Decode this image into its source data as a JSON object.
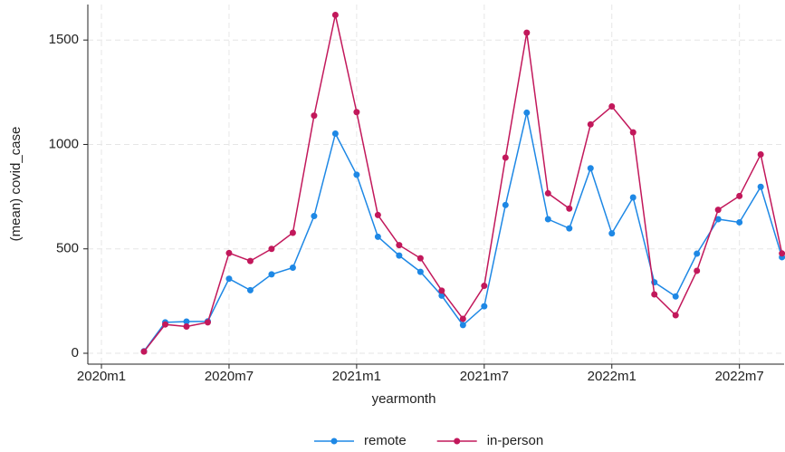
{
  "chart_data": {
    "type": "line",
    "x_label": "yearmonth",
    "y_label": "(mean) covid_case",
    "x": [
      722,
      723,
      724,
      725,
      726,
      727,
      728,
      729,
      730,
      731,
      732,
      733,
      734,
      735,
      736,
      737,
      738,
      739,
      740,
      741,
      742,
      743,
      744,
      745,
      746,
      747,
      748,
      749,
      750,
      751,
      752
    ],
    "series": [
      {
        "name": "remote",
        "color": "#1e88e5",
        "values": [
          10,
          148,
          152,
          153,
          357,
          302,
          378,
          410,
          657,
          1052,
          855,
          558,
          468,
          390,
          276,
          135,
          225,
          710,
          1152,
          642,
          598,
          886,
          574,
          746,
          340,
          272,
          477,
          642,
          627,
          797,
          460
        ]
      },
      {
        "name": "in-person",
        "color": "#c2185b",
        "values": [
          8,
          138,
          128,
          148,
          480,
          442,
          500,
          577,
          1138,
          1620,
          1155,
          662,
          518,
          455,
          300,
          165,
          323,
          937,
          1535,
          766,
          693,
          1096,
          1182,
          1058,
          282,
          182,
          395,
          687,
          753,
          952,
          478
        ]
      }
    ],
    "xlim": [
      719.36,
      752.1
    ],
    "xticks": [
      {
        "value": 720,
        "label": "2020m1"
      },
      {
        "value": 726,
        "label": "2020m7"
      },
      {
        "value": 732,
        "label": "2021m1"
      },
      {
        "value": 738,
        "label": "2021m7"
      },
      {
        "value": 744,
        "label": "2022m1"
      },
      {
        "value": 750,
        "label": "2022m7"
      }
    ],
    "ylim": [
      -52,
      1670
    ],
    "yticks": [
      0,
      500,
      1000,
      1500
    ],
    "grid": true,
    "legend": "bottom"
  }
}
